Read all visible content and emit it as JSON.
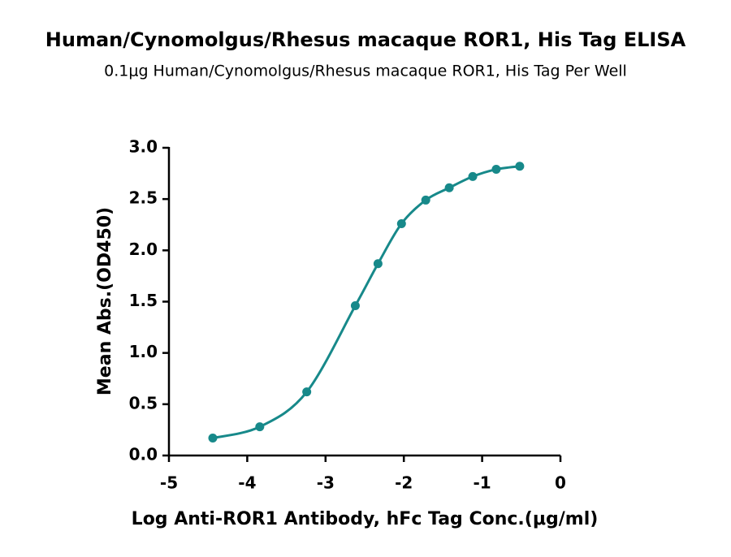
{
  "chart_data": {
    "type": "scatter",
    "title": "Human/Cynomolgus/Rhesus macaque ROR1, His Tag ELISA",
    "subtitle": "0.1μg Human/Cynomolgus/Rhesus macaque ROR1, His Tag Per Well",
    "x_label": "Log Anti-ROR1 Antibody, hFc Tag Conc.(μg/ml)",
    "y_label": "Mean Abs.(OD450)",
    "series": [
      {
        "color": "#17898a",
        "x": [
          -4.44,
          -3.84,
          -3.24,
          -2.62,
          -2.33,
          -2.03,
          -1.72,
          -1.42,
          -1.12,
          -0.82,
          -0.52
        ],
        "values": [
          0.17,
          0.28,
          0.62,
          1.46,
          1.87,
          2.26,
          2.49,
          2.61,
          2.72,
          2.79,
          2.82
        ]
      }
    ],
    "xlim": [
      -5,
      0
    ],
    "xticks": [
      -5,
      -4,
      -3,
      -2,
      -1,
      0
    ],
    "ylim": [
      0,
      3
    ],
    "yticks": [
      {
        "value": 0,
        "label": "0.0"
      },
      0.5,
      {
        "value": 1,
        "label": "1.0"
      },
      1.5,
      {
        "value": 2,
        "label": "2.0"
      },
      2.5,
      {
        "value": 3,
        "label": "3.0"
      }
    ]
  }
}
